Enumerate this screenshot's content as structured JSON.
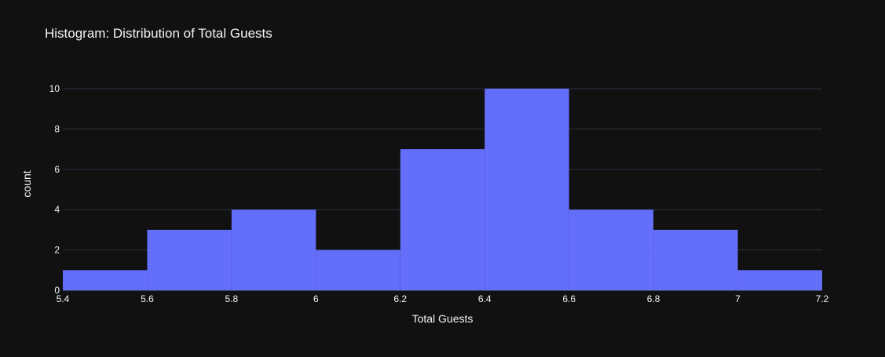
{
  "chart_data": {
    "type": "bar",
    "title": "Histogram: Distribution of Total Guests",
    "xlabel": "Total Guests",
    "ylabel": "count",
    "bins": [
      {
        "start": 5.4,
        "end": 5.6,
        "count": 1
      },
      {
        "start": 5.6,
        "end": 5.8,
        "count": 3
      },
      {
        "start": 5.8,
        "end": 6.0,
        "count": 4
      },
      {
        "start": 6.0,
        "end": 6.2,
        "count": 2
      },
      {
        "start": 6.2,
        "end": 6.4,
        "count": 7
      },
      {
        "start": 6.4,
        "end": 6.6,
        "count": 10
      },
      {
        "start": 6.6,
        "end": 6.8,
        "count": 4
      },
      {
        "start": 6.8,
        "end": 7.0,
        "count": 3
      },
      {
        "start": 7.0,
        "end": 7.2,
        "count": 1
      }
    ],
    "xlim": [
      5.4,
      7.2
    ],
    "ylim": [
      0,
      10
    ],
    "x_ticks": [
      {
        "value": 5.4,
        "label": "5.4"
      },
      {
        "value": 5.6,
        "label": "5.6"
      },
      {
        "value": 5.8,
        "label": "5.8"
      },
      {
        "value": 6.0,
        "label": "6"
      },
      {
        "value": 6.2,
        "label": "6.2"
      },
      {
        "value": 6.4,
        "label": "6.4"
      },
      {
        "value": 6.6,
        "label": "6.6"
      },
      {
        "value": 6.8,
        "label": "6.8"
      },
      {
        "value": 7.0,
        "label": "7"
      },
      {
        "value": 7.2,
        "label": "7.2"
      }
    ],
    "y_ticks": [
      {
        "value": 0,
        "label": "0"
      },
      {
        "value": 2,
        "label": "2"
      },
      {
        "value": 4,
        "label": "4"
      },
      {
        "value": 6,
        "label": "6"
      },
      {
        "value": 8,
        "label": "8"
      },
      {
        "value": 10,
        "label": "10"
      }
    ],
    "grid": true,
    "legend": "none",
    "colors": {
      "background": "#111111",
      "bar": "#636efa",
      "grid": "#283442",
      "text": "#f2f5fa"
    }
  }
}
